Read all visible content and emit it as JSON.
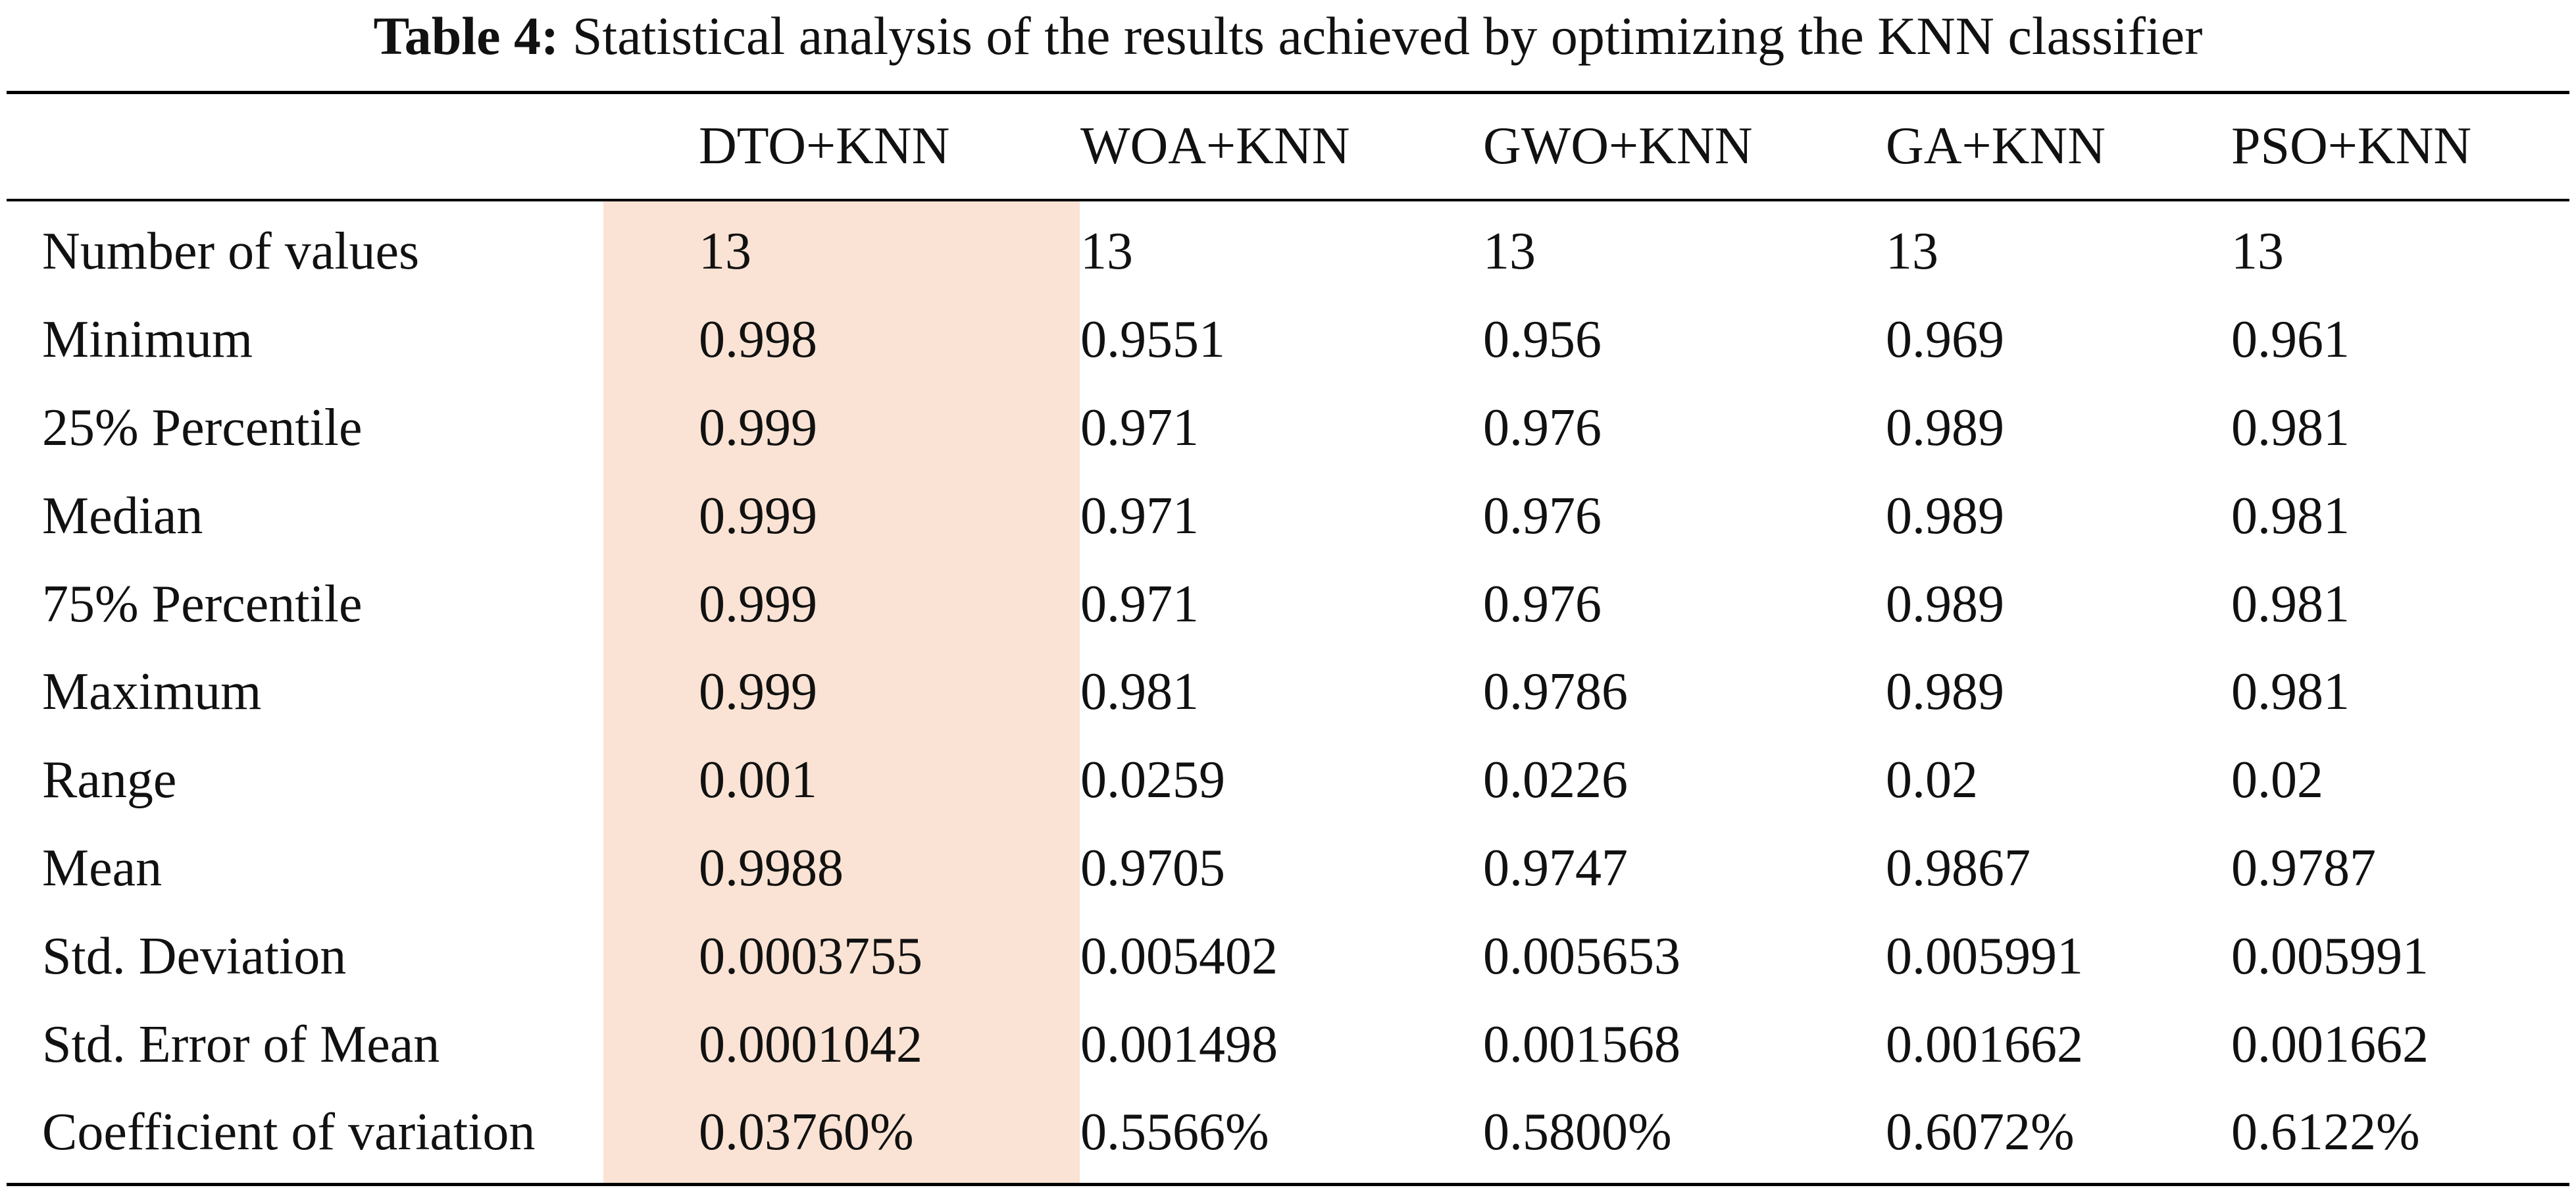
{
  "caption": {
    "label": "Table 4:",
    "text": "Statistical analysis of the results achieved by optimizing the KNN classifier"
  },
  "highlight_color": "#fae3d4",
  "table": {
    "columns": [
      "DTO+KNN",
      "WOA+KNN",
      "GWO+KNN",
      "GA+KNN",
      "PSO+KNN"
    ],
    "rows": [
      {
        "label": "Number of values",
        "values": [
          "13",
          "13",
          "13",
          "13",
          "13"
        ]
      },
      {
        "label": "Minimum",
        "values": [
          "0.998",
          "0.9551",
          "0.956",
          "0.969",
          "0.961"
        ]
      },
      {
        "label": "25% Percentile",
        "values": [
          "0.999",
          "0.971",
          "0.976",
          "0.989",
          "0.981"
        ]
      },
      {
        "label": "Median",
        "values": [
          "0.999",
          "0.971",
          "0.976",
          "0.989",
          "0.981"
        ]
      },
      {
        "label": "75% Percentile",
        "values": [
          "0.999",
          "0.971",
          "0.976",
          "0.989",
          "0.981"
        ]
      },
      {
        "label": "Maximum",
        "values": [
          "0.999",
          "0.981",
          "0.9786",
          "0.989",
          "0.981"
        ]
      },
      {
        "label": "Range",
        "values": [
          "0.001",
          "0.0259",
          "0.0226",
          "0.02",
          "0.02"
        ]
      },
      {
        "label": "Mean",
        "values": [
          "0.9988",
          "0.9705",
          "0.9747",
          "0.9867",
          "0.9787"
        ]
      },
      {
        "label": "Std. Deviation",
        "values": [
          "0.0003755",
          "0.005402",
          "0.005653",
          "0.005991",
          "0.005991"
        ]
      },
      {
        "label": "Std. Error of Mean",
        "values": [
          "0.0001042",
          "0.001498",
          "0.001568",
          "0.001662",
          "0.001662"
        ]
      },
      {
        "label": "Coefficient of variation",
        "values": [
          "0.03760%",
          "0.5566%",
          "0.5800%",
          "0.6072%",
          "0.6122%"
        ]
      }
    ]
  }
}
